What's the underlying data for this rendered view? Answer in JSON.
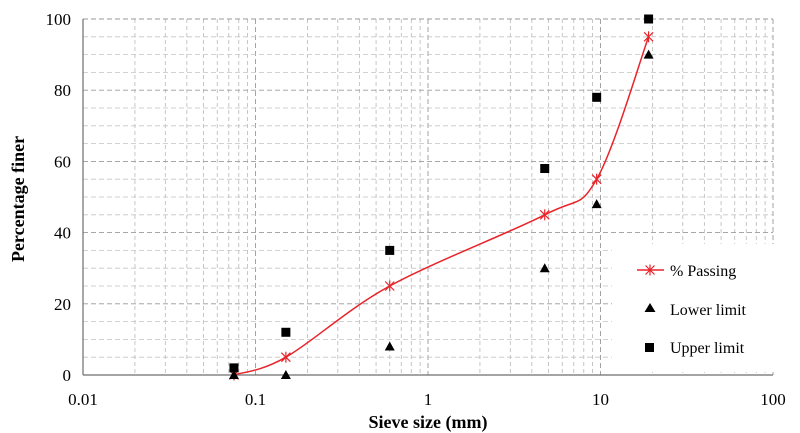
{
  "chart_data": {
    "type": "scatter",
    "xlabel": "Sieve size (mm)",
    "ylabel": "Percentage finer",
    "x_scale": "log",
    "xlim": [
      0.01,
      100
    ],
    "ylim": [
      0,
      100
    ],
    "x_ticks": [
      0.01,
      0.1,
      1,
      10,
      100
    ],
    "x_tick_labels": [
      "0.01",
      "0.1",
      "1",
      "10",
      "100"
    ],
    "y_ticks": [
      0,
      20,
      40,
      60,
      80,
      100
    ],
    "y_tick_labels": [
      "0",
      "20",
      "40",
      "60",
      "80",
      "100"
    ],
    "grid": "dashed major and minor gridlines",
    "legend_position": "bottom-right",
    "series": [
      {
        "name": "% Passing",
        "mark": "line-with-star-markers",
        "color": "#e8242a",
        "x": [
          0.075,
          0.15,
          0.6,
          4.75,
          9.5,
          19
        ],
        "y": [
          0,
          5,
          25,
          45,
          55,
          95
        ]
      },
      {
        "name": "Lower limit",
        "mark": "triangle",
        "color": "#000000",
        "x": [
          0.075,
          0.15,
          0.6,
          4.75,
          9.5,
          19
        ],
        "y": [
          0,
          0,
          8,
          30,
          48,
          90
        ]
      },
      {
        "name": "Upper limit",
        "mark": "square",
        "color": "#000000",
        "x": [
          0.075,
          0.15,
          0.6,
          4.75,
          9.5,
          19
        ],
        "y": [
          2,
          12,
          35,
          58,
          78,
          100
        ]
      }
    ]
  }
}
